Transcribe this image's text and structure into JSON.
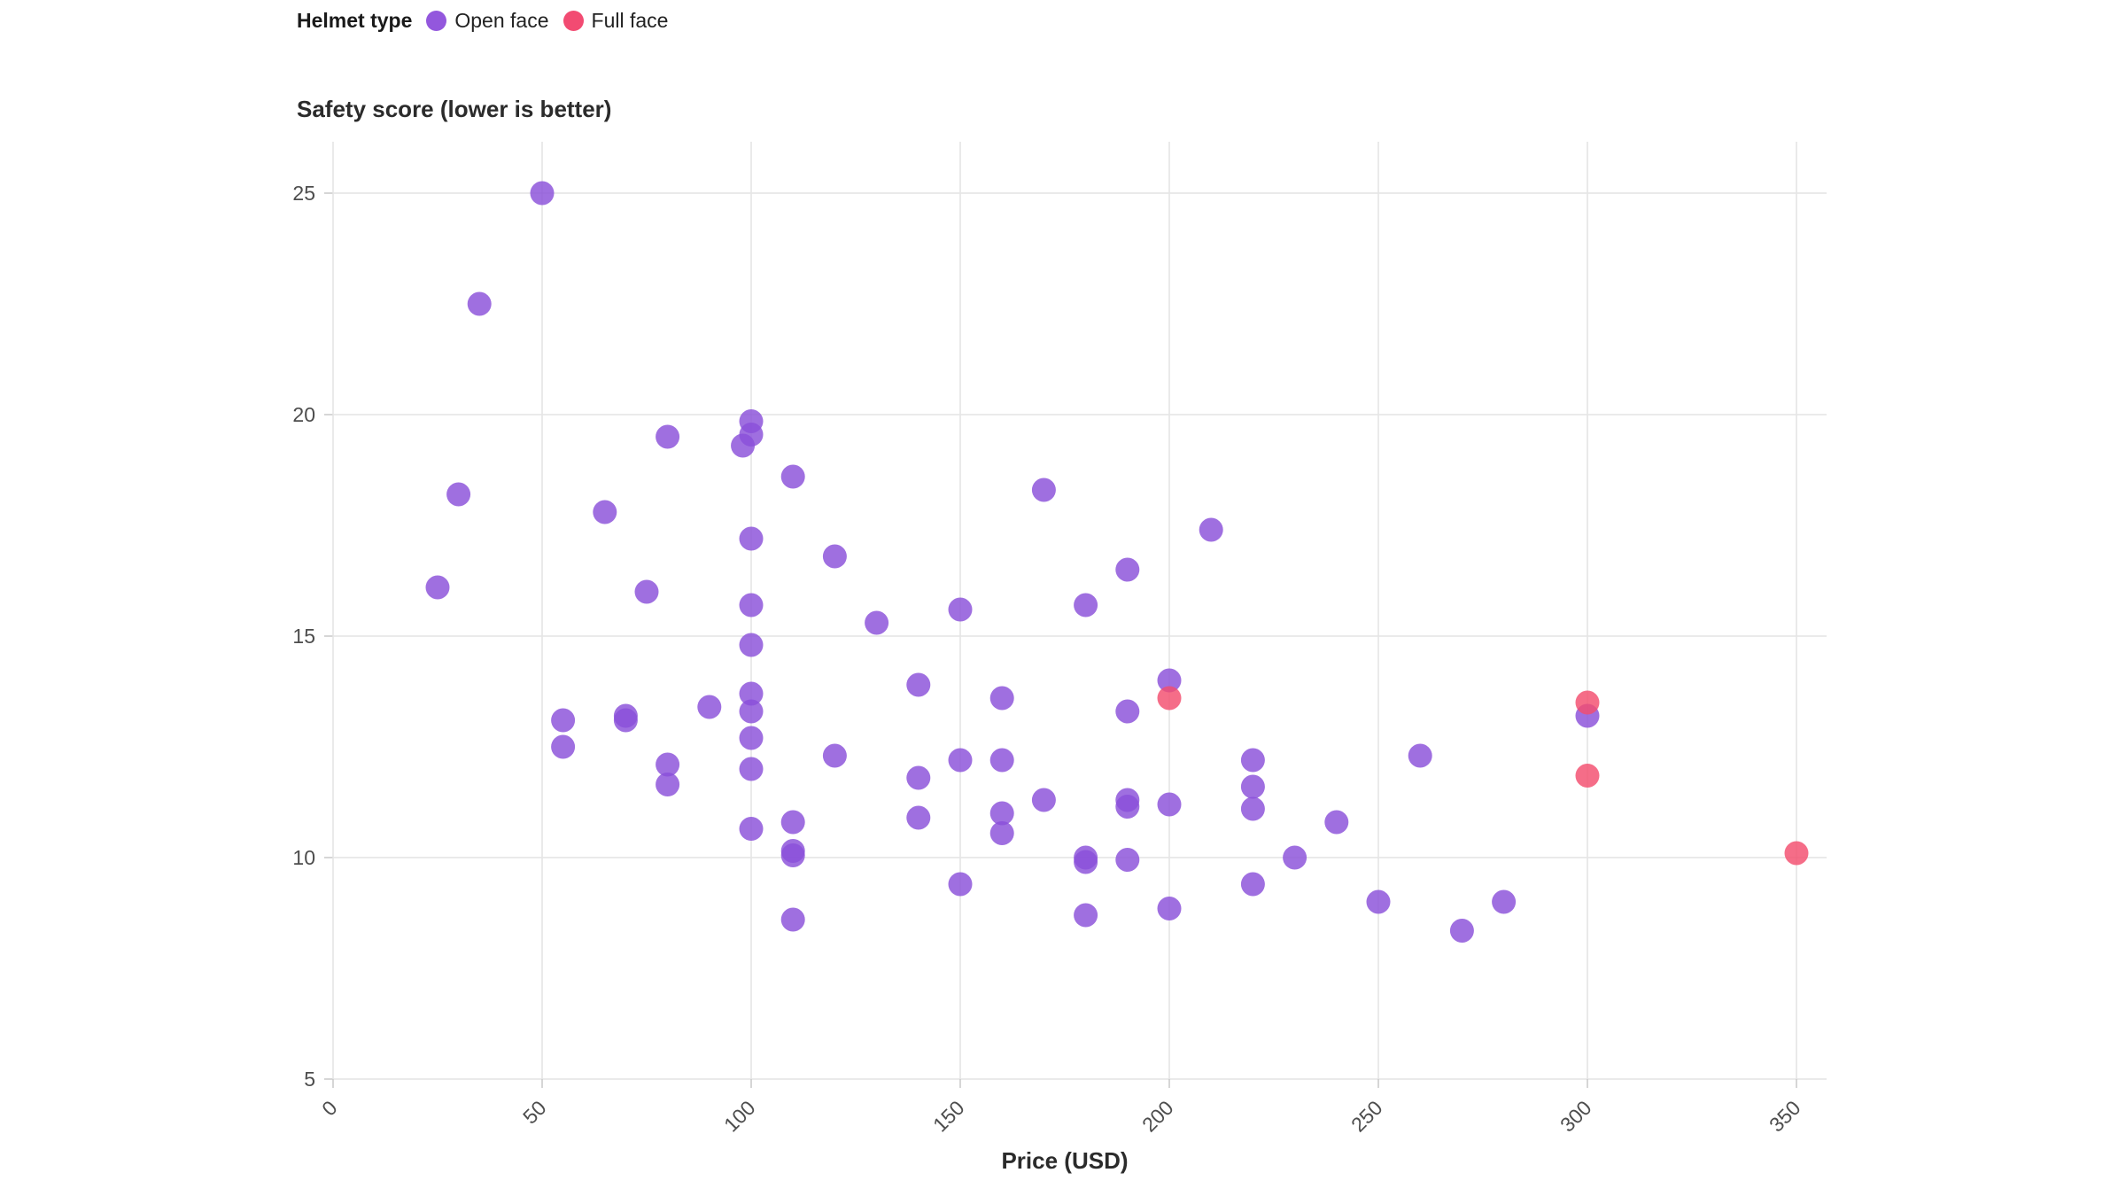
{
  "legend": {
    "title": "Helmet type",
    "items": [
      {
        "label": "Open face",
        "color": "#9357dd"
      },
      {
        "label": "Full face",
        "color": "#f24b72"
      }
    ]
  },
  "titles": {
    "y_axis_title": "Safety score (lower is better)",
    "x_axis_title": "Price (USD)"
  },
  "colors": {
    "open_face": "#8a4fd9",
    "full_face": "#f34d6e",
    "grid": "#e4e4e4",
    "tick": "#c8c8c8",
    "tick_text": "#4d4d4d"
  },
  "chart_data": {
    "type": "scatter",
    "title": "Safety score (lower is better)",
    "xlabel": "Price (USD)",
    "ylabel": "Safety score (lower is better)",
    "xlim": [
      0,
      350
    ],
    "ylim": [
      5,
      25
    ],
    "x_ticks": [
      0,
      50,
      100,
      150,
      200,
      250,
      300,
      350
    ],
    "y_ticks": [
      5,
      10,
      15,
      20,
      25
    ],
    "grid": true,
    "legend_position": "top-left",
    "marker_radius": 13.5,
    "marker_opacity": 0.82,
    "series": [
      {
        "name": "Open face",
        "color": "#8a4fd9",
        "points": [
          [
            25,
            16.1
          ],
          [
            30,
            18.2
          ],
          [
            35,
            22.5
          ],
          [
            50,
            25.0
          ],
          [
            55,
            13.1
          ],
          [
            55,
            12.5
          ],
          [
            65,
            17.8
          ],
          [
            70,
            13.2
          ],
          [
            70,
            13.1
          ],
          [
            75,
            16.0
          ],
          [
            80,
            19.5
          ],
          [
            80,
            12.1
          ],
          [
            80,
            11.65
          ],
          [
            90,
            13.4
          ],
          [
            98,
            19.3
          ],
          [
            100,
            19.85
          ],
          [
            100,
            19.55
          ],
          [
            100,
            17.2
          ],
          [
            100,
            15.7
          ],
          [
            100,
            14.8
          ],
          [
            100,
            13.7
          ],
          [
            100,
            13.3
          ],
          [
            100,
            12.7
          ],
          [
            100,
            12.0
          ],
          [
            100,
            10.65
          ],
          [
            110,
            18.6
          ],
          [
            110,
            10.8
          ],
          [
            110,
            10.15
          ],
          [
            110,
            10.05
          ],
          [
            110,
            8.6
          ],
          [
            120,
            16.8
          ],
          [
            120,
            12.3
          ],
          [
            130,
            15.3
          ],
          [
            140,
            13.9
          ],
          [
            140,
            11.8
          ],
          [
            140,
            10.9
          ],
          [
            150,
            15.6
          ],
          [
            150,
            12.2
          ],
          [
            150,
            9.4
          ],
          [
            160,
            13.6
          ],
          [
            160,
            12.2
          ],
          [
            160,
            11.0
          ],
          [
            160,
            10.55
          ],
          [
            170,
            18.3
          ],
          [
            170,
            11.3
          ],
          [
            180,
            15.7
          ],
          [
            180,
            10.0
          ],
          [
            180,
            9.9
          ],
          [
            180,
            8.7
          ],
          [
            190,
            16.5
          ],
          [
            190,
            13.3
          ],
          [
            190,
            11.3
          ],
          [
            190,
            11.15
          ],
          [
            190,
            9.95
          ],
          [
            200,
            14.0
          ],
          [
            200,
            11.2
          ],
          [
            200,
            8.85
          ],
          [
            210,
            17.4
          ],
          [
            220,
            12.2
          ],
          [
            220,
            11.6
          ],
          [
            220,
            11.1
          ],
          [
            220,
            9.4
          ],
          [
            230,
            10.0
          ],
          [
            240,
            10.8
          ],
          [
            250,
            9.0
          ],
          [
            260,
            12.3
          ],
          [
            270,
            8.35
          ],
          [
            280,
            9.0
          ],
          [
            300,
            13.2
          ]
        ]
      },
      {
        "name": "Full face",
        "color": "#f34d6e",
        "points": [
          [
            200,
            13.6
          ],
          [
            300,
            13.5
          ],
          [
            300,
            11.85
          ],
          [
            350,
            10.1
          ]
        ]
      }
    ]
  }
}
